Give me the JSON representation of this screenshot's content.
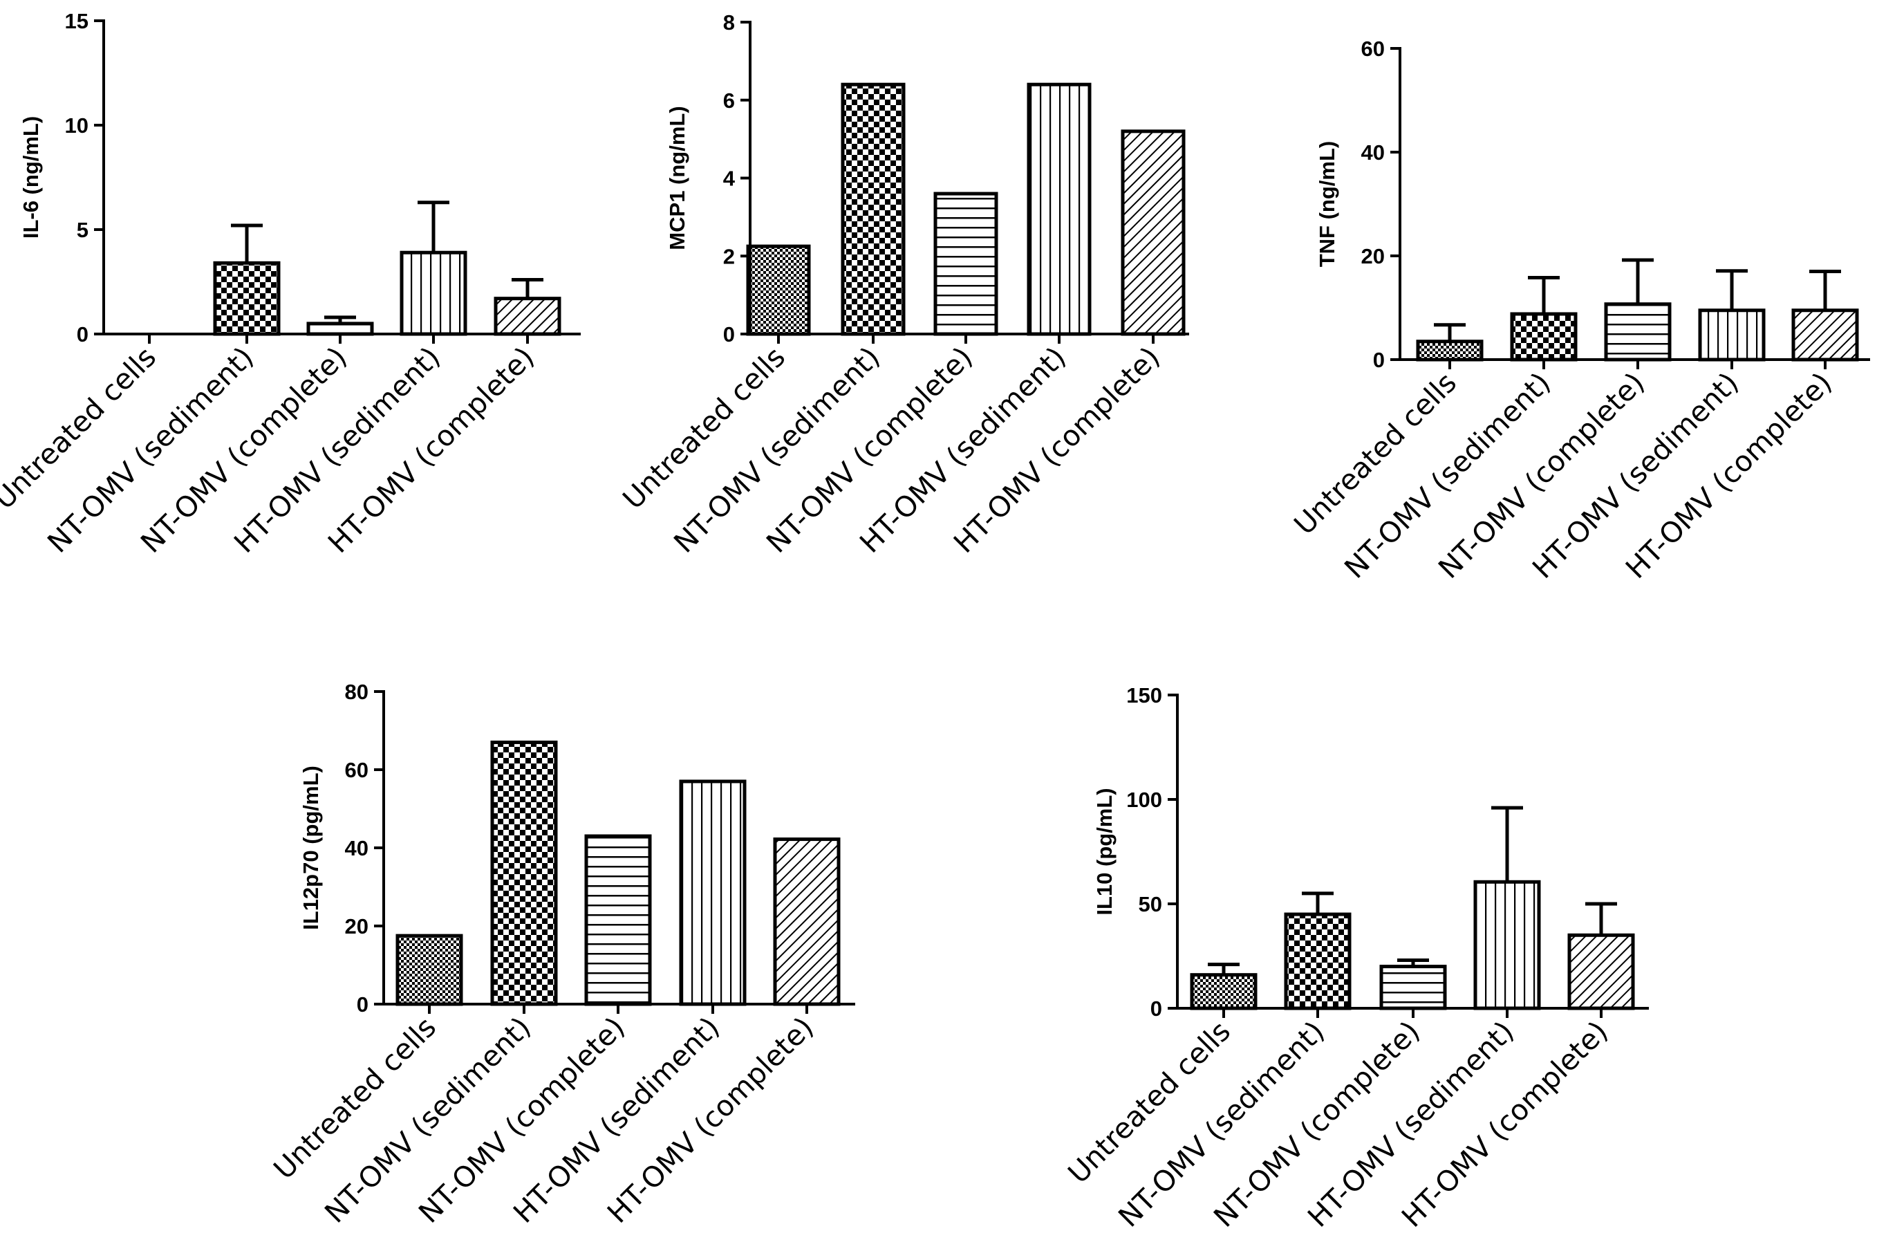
{
  "chart_data": [
    {
      "type": "bar",
      "ylabel": "IL-6 (ng/mL)",
      "ylim": [
        0,
        15
      ],
      "yticks": [
        0,
        5,
        10,
        15
      ],
      "categories": [
        "Untreated cells",
        "NT-OMV (sediment)",
        "NT-OMV (complete)",
        "HT-OMV (sediment)",
        "HT-OMV (complete)"
      ],
      "patterns": [
        "fine-check",
        "check",
        "horizontal",
        "vertical",
        "diagonal"
      ],
      "values": [
        0,
        3.4,
        0.5,
        3.9,
        1.7
      ],
      "errors": [
        0,
        1.8,
        0.3,
        2.4,
        0.9
      ]
    },
    {
      "type": "bar",
      "ylabel": "MCP1 (ng/mL)",
      "ylim": [
        0,
        8
      ],
      "yticks": [
        0,
        2,
        4,
        6,
        8
      ],
      "categories": [
        "Untreated cells",
        "NT-OMV (sediment)",
        "NT-OMV (complete)",
        "HT-OMV (sediment)",
        "HT-OMV (complete)"
      ],
      "patterns": [
        "fine-check",
        "check",
        "horizontal",
        "vertical",
        "diagonal"
      ],
      "values": [
        2.25,
        6.4,
        3.6,
        6.4,
        5.2
      ],
      "errors": [
        0,
        0,
        0,
        0,
        0
      ]
    },
    {
      "type": "bar",
      "ylabel": "TNF (ng/mL)",
      "ylim": [
        0,
        60
      ],
      "yticks": [
        0,
        20,
        40,
        60
      ],
      "categories": [
        "Untreated cells",
        "NT-OMV (sediment)",
        "NT-OMV (complete)",
        "HT-OMV (sediment)",
        "HT-OMV (complete)"
      ],
      "patterns": [
        "fine-check",
        "check",
        "horizontal",
        "vertical",
        "diagonal"
      ],
      "values": [
        3.5,
        8.8,
        10.7,
        9.5,
        9.5
      ],
      "errors": [
        3.2,
        7,
        8.5,
        7.6,
        7.5
      ]
    },
    {
      "type": "bar",
      "ylabel": "IL12p70 (pg/mL)",
      "ylim": [
        0,
        80
      ],
      "yticks": [
        0,
        20,
        40,
        60,
        80
      ],
      "categories": [
        "Untreated cells",
        "NT-OMV (sediment)",
        "NT-OMV (complete)",
        "HT-OMV (sediment)",
        "HT-OMV (complete)"
      ],
      "patterns": [
        "fine-check",
        "check",
        "horizontal",
        "vertical",
        "diagonal"
      ],
      "values": [
        17.5,
        67,
        43,
        57,
        42.2
      ],
      "errors": [
        0,
        0,
        0,
        0,
        0
      ]
    },
    {
      "type": "bar",
      "ylabel": "IL10 (pg/mL)",
      "ylim": [
        0,
        150
      ],
      "yticks": [
        0,
        50,
        100,
        150
      ],
      "categories": [
        "Untreated cells",
        "NT-OMV (sediment)",
        "NT-OMV (complete)",
        "HT-OMV (sediment)",
        "HT-OMV (complete)"
      ],
      "patterns": [
        "fine-check",
        "check",
        "horizontal",
        "vertical",
        "diagonal"
      ],
      "values": [
        16,
        45,
        20,
        60.5,
        35
      ],
      "errors": [
        5,
        10,
        3,
        35.5,
        15
      ]
    }
  ]
}
